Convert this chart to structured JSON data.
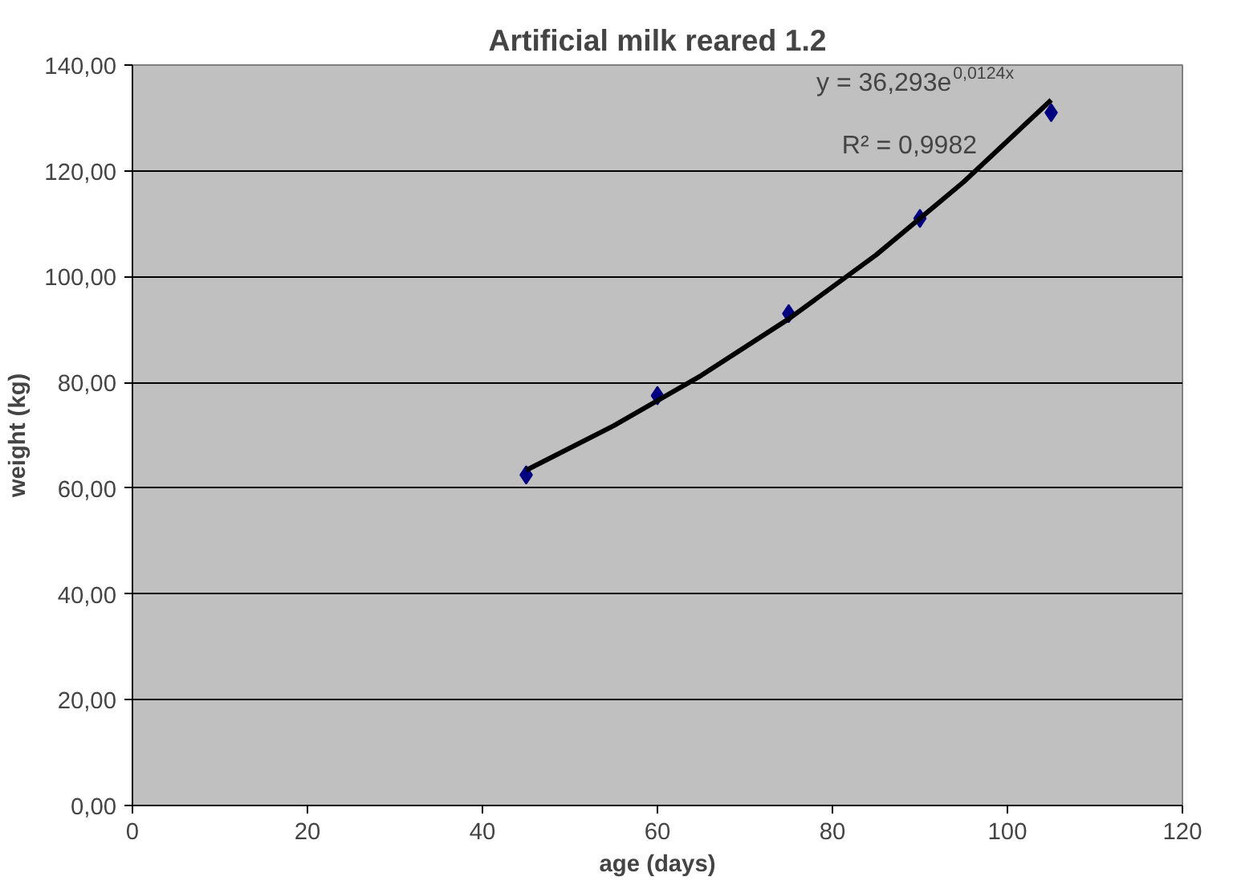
{
  "chart_data": {
    "type": "scatter",
    "title": "Artificial milk reared 1.2",
    "xlabel": "age (days)",
    "ylabel": "weight (kg)",
    "annotations": [
      "y = 36,293e$^{0,0124x}$",
      "R² = 0,9982"
    ],
    "series": [
      {
        "type": "scatter",
        "color": "#000080",
        "marker": "diamond",
        "x": [
          45,
          60,
          75,
          90,
          105
        ],
        "values": [
          62.5,
          77.5,
          93,
          111,
          131
        ]
      },
      {
        "type": "line",
        "color": "#000000",
        "line_style": "solid",
        "marker": "none",
        "x": [
          45,
          55,
          65,
          75,
          85,
          95,
          105
        ],
        "values": [
          63.4,
          71.8,
          81.3,
          92.0,
          104.1,
          117.9,
          133.4
        ]
      }
    ],
    "xlim": [
      0,
      120
    ],
    "xticks": [
      0,
      20,
      40,
      60,
      80,
      100,
      120
    ],
    "ylim": [
      0,
      140
    ],
    "yticks": [
      {
        "value": 0,
        "label": "0,00"
      },
      {
        "value": 20,
        "label": "20,00"
      },
      {
        "value": 40,
        "label": "40,00"
      },
      {
        "value": 60,
        "label": "60,00"
      },
      {
        "value": 80,
        "label": "80,00"
      },
      {
        "value": 100,
        "label": "100,00"
      },
      {
        "value": 120,
        "label": "120,00"
      },
      {
        "value": 140,
        "label": "140,00"
      }
    ],
    "grid": "y"
  }
}
